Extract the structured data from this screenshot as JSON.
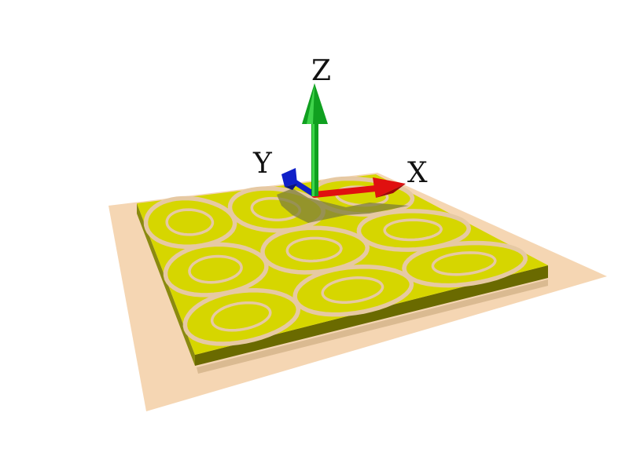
{
  "axes": {
    "x": {
      "label": "X",
      "color": "#e01010"
    },
    "y": {
      "label": "Y",
      "color": "#1020c8"
    },
    "z": {
      "label": "Z",
      "color": "#10a020"
    }
  },
  "colors": {
    "background": "#ffffff",
    "ground_plane": "#f3cfa6",
    "board_top": "#d6d600",
    "board_side": "#6a6a00",
    "ring_gap": "#e6c9a3",
    "shadow": "#9a9a55"
  },
  "scene": {
    "object": "periodic-ring-patch-board",
    "rings": {
      "rows": 3,
      "cols": 3
    }
  }
}
